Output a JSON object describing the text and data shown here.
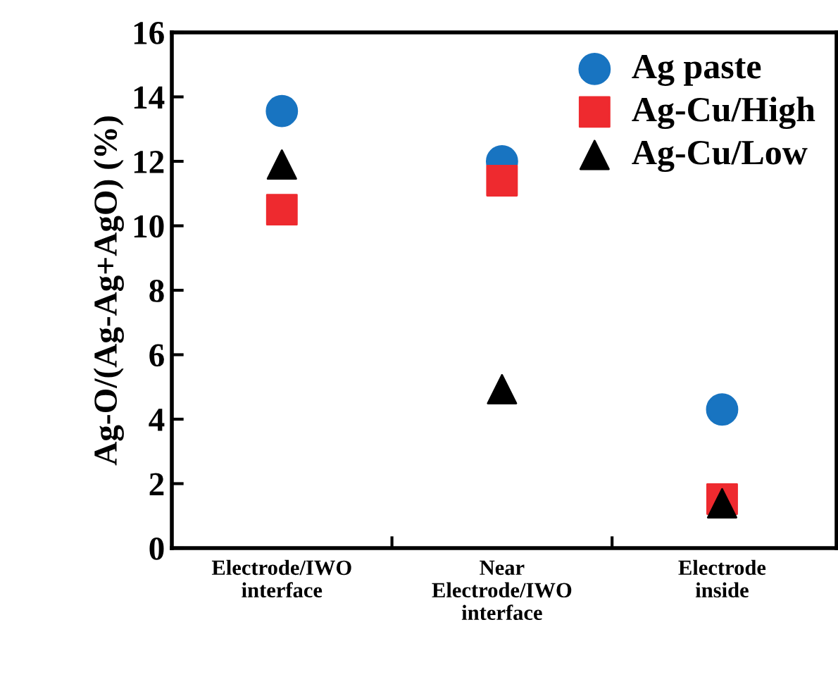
{
  "chart_data": {
    "type": "scatter",
    "ylabel": "Ag-O/(Ag-Ag+AgO) (%)",
    "categories": [
      "Electrode/IWO\ninterface",
      "Near\nElectrode/IWO\ninterface",
      "Electrode\ninside"
    ],
    "series": [
      {
        "name": "Ag paste",
        "color": "#1874c1",
        "marker": "circle",
        "values": [
          13.56,
          12.0,
          4.3
        ]
      },
      {
        "name": "Ag-Cu/High",
        "color": "#ee2a2f",
        "marker": "square",
        "values": [
          10.5,
          11.4,
          1.52
        ]
      },
      {
        "name": "Ag-Cu/Low",
        "color": "#000000",
        "marker": "triangle",
        "values": [
          11.9,
          4.93,
          1.39
        ]
      }
    ],
    "ylim": [
      0,
      16
    ],
    "yticks": [
      0,
      2,
      4,
      6,
      8,
      10,
      12,
      14,
      16
    ],
    "grid": false,
    "legend": "top right"
  }
}
